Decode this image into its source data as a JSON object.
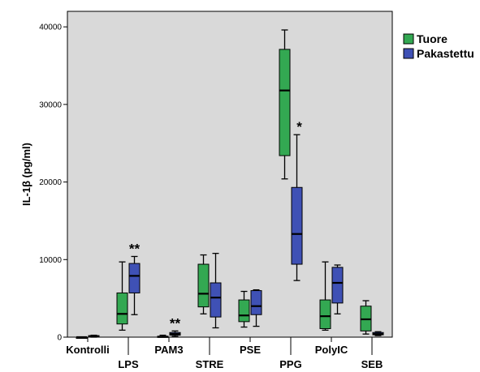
{
  "chart_data": {
    "type": "boxplot",
    "ylabel": "IL-1β (pg/ml)",
    "ylim": [
      0,
      42000
    ],
    "yticks": [
      0,
      10000,
      20000,
      30000,
      40000
    ],
    "ytick_labels": [
      "0",
      "10000",
      "20000",
      "30000",
      "40000"
    ],
    "categories": [
      "Kontrolli",
      "LPS",
      "PAM3",
      "STRE",
      "PSE",
      "PPG",
      "PolyIC",
      "SEB"
    ],
    "legend_position": "right",
    "plot_background": "#d9d9d9",
    "series": [
      {
        "name": "Tuore",
        "color": "#33a852",
        "boxes": [
          {
            "min": 0,
            "q1": 0,
            "median": 0,
            "q3": 0,
            "max": 0
          },
          {
            "min": 900,
            "q1": 1700,
            "median": 3000,
            "q3": 5700,
            "max": 9700
          },
          {
            "min": 0,
            "q1": 0,
            "median": 50,
            "q3": 120,
            "max": 250
          },
          {
            "min": 3000,
            "q1": 3900,
            "median": 5600,
            "q3": 9400,
            "max": 10600
          },
          {
            "min": 1300,
            "q1": 2000,
            "median": 2800,
            "q3": 4800,
            "max": 5900
          },
          {
            "min": 20400,
            "q1": 23400,
            "median": 31800,
            "q3": 37100,
            "max": 39600
          },
          {
            "min": 900,
            "q1": 1100,
            "median": 2700,
            "q3": 4800,
            "max": 9700
          },
          {
            "min": 400,
            "q1": 800,
            "median": 2300,
            "q3": 4000,
            "max": 4700
          }
        ]
      },
      {
        "name": "Pakastettu",
        "color": "#3f51b5",
        "boxes": [
          {
            "min": 0,
            "q1": 50,
            "median": 100,
            "q3": 200,
            "max": 250
          },
          {
            "min": 2900,
            "q1": 5700,
            "median": 7900,
            "q3": 9500,
            "max": 10400
          },
          {
            "min": 100,
            "q1": 250,
            "median": 400,
            "q3": 600,
            "max": 800
          },
          {
            "min": 1200,
            "q1": 2600,
            "median": 5100,
            "q3": 7000,
            "max": 10800
          },
          {
            "min": 1400,
            "q1": 2900,
            "median": 4000,
            "q3": 6000,
            "max": 6100
          },
          {
            "min": 7300,
            "q1": 9400,
            "median": 13300,
            "q3": 19300,
            "max": 26100
          },
          {
            "min": 3000,
            "q1": 4400,
            "median": 7000,
            "q3": 9000,
            "max": 9300
          },
          {
            "min": 200,
            "q1": 300,
            "median": 400,
            "q3": 600,
            "max": 700
          }
        ]
      }
    ],
    "annotations": [
      {
        "text": "**",
        "category": "LPS"
      },
      {
        "text": "**",
        "category": "PAM3"
      },
      {
        "text": "*",
        "category": "PPG"
      }
    ]
  }
}
